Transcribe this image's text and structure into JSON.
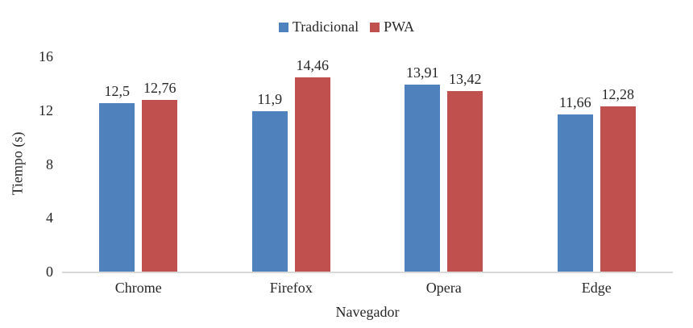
{
  "chart_data": {
    "type": "bar",
    "title": "",
    "categories": [
      "Chrome",
      "Firefox",
      "Opera",
      "Edge"
    ],
    "series": [
      {
        "name": "Tradicional",
        "color": "#4F81BD",
        "values": [
          12.5,
          11.9,
          13.91,
          11.66
        ],
        "labels": [
          "12,5",
          "11,9",
          "13,91",
          "11,66"
        ]
      },
      {
        "name": "PWA",
        "color": "#C0504D",
        "values": [
          12.76,
          14.46,
          13.42,
          12.28
        ],
        "labels": [
          "12,76",
          "14,46",
          "13,42",
          "12,28"
        ]
      }
    ],
    "xlabel": "Navegador",
    "ylabel": "Tiempo (s)",
    "yticks": [
      0,
      4,
      8,
      12,
      16
    ],
    "ylim": [
      0,
      16
    ],
    "grid": false,
    "legend_position": "top",
    "axis_line_color": "#D9D9D9",
    "background_color": "#FFFFFF"
  }
}
